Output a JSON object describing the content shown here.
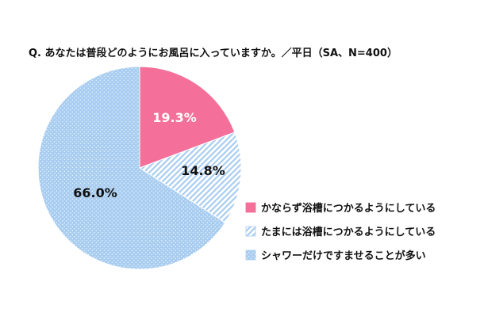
{
  "chart_data": {
    "type": "pie",
    "title": "Q. あなたは普段どのようにお風呂に入っていますか。／平日（SA、N=400）",
    "labels": [
      "かならず浴槽につかるようにしている",
      "たまには浴槽につかるようにしている",
      "シャワーだけですませることが多い"
    ],
    "values": [
      19.3,
      14.8,
      66.0
    ],
    "value_labels": [
      "19.3%",
      "14.8%",
      "66.0%"
    ],
    "colors": [
      "#f46f9a",
      "#a9cdf0",
      "#a9cdf0"
    ],
    "fill_patterns": [
      "solid",
      "diagonal-stripes",
      "dots"
    ],
    "start_angle": "12 o'clock",
    "direction": "clockwise",
    "legend_position": "right"
  }
}
